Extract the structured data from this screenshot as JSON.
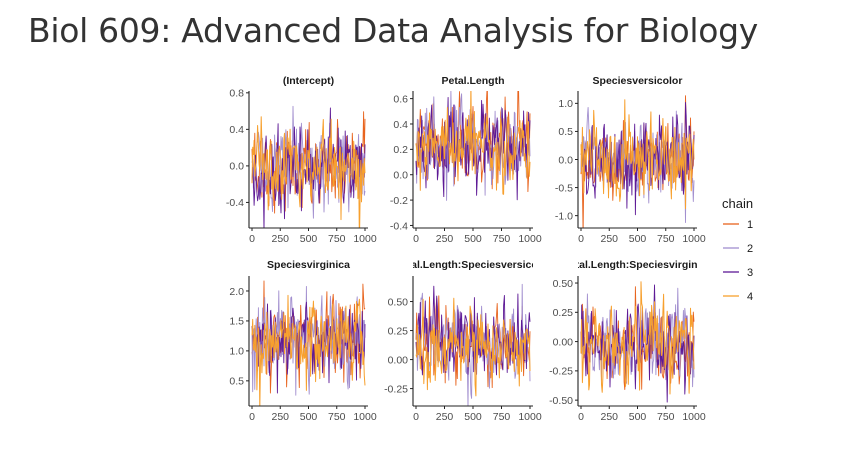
{
  "page": {
    "title": "Biol 609: Advanced Data Analysis for Biology"
  },
  "colors": {
    "1": "#e8641e",
    "2": "#a28fcf",
    "3": "#5e1a96",
    "4": "#f7a02e",
    "axis": "#222222",
    "tick_label": "#4d4d4d"
  },
  "legend": {
    "title": "chain",
    "placement": "right"
  },
  "chart_data": [
    {
      "type": "line",
      "title": "(Intercept)",
      "x_ticks": [
        0,
        250,
        500,
        750,
        1000
      ],
      "xlim": [
        0,
        1000
      ],
      "y_ticks": [
        -0.4,
        0.0,
        0.4,
        0.8
      ],
      "y_tick_labels": [
        "-0.4",
        "0.0",
        "0.4",
        "0.8"
      ],
      "ylim": [
        -0.68,
        0.82
      ],
      "trace_center": -0.02,
      "trace_sd": 0.22,
      "series": [
        {
          "name": "1"
        },
        {
          "name": "2"
        },
        {
          "name": "3"
        },
        {
          "name": "4"
        }
      ]
    },
    {
      "type": "line",
      "title": "Petal.Length",
      "x_ticks": [
        0,
        250,
        500,
        750,
        1000
      ],
      "xlim": [
        0,
        1000
      ],
      "y_ticks": [
        -0.4,
        -0.2,
        0.0,
        0.2,
        0.4,
        0.6
      ],
      "y_tick_labels": [
        "-0.4",
        "-0.2",
        "0.0",
        "0.2",
        "0.4",
        "0.6"
      ],
      "ylim": [
        -0.42,
        0.66
      ],
      "trace_center": 0.22,
      "trace_sd": 0.16,
      "series": [
        {
          "name": "1"
        },
        {
          "name": "2"
        },
        {
          "name": "3"
        },
        {
          "name": "4"
        }
      ]
    },
    {
      "type": "line",
      "title": "Speciesversicolor",
      "x_ticks": [
        0,
        250,
        500,
        750,
        1000
      ],
      "xlim": [
        0,
        1000
      ],
      "y_ticks": [
        -1.0,
        -0.5,
        0.0,
        0.5,
        1.0
      ],
      "y_tick_labels": [
        "-1.0",
        "-0.5",
        "0.0",
        "0.5",
        "1.0"
      ],
      "ylim": [
        -1.22,
        1.22
      ],
      "trace_center": 0.0,
      "trace_sd": 0.36,
      "series": [
        {
          "name": "1"
        },
        {
          "name": "2"
        },
        {
          "name": "3"
        },
        {
          "name": "4"
        }
      ]
    },
    {
      "type": "line",
      "title": "Speciesvirginica",
      "x_ticks": [
        0,
        250,
        500,
        750,
        1000
      ],
      "xlim": [
        0,
        1000
      ],
      "y_ticks": [
        0.5,
        1.0,
        1.5,
        2.0
      ],
      "y_tick_labels": [
        "0.5",
        "1.0",
        "1.5",
        "2.0"
      ],
      "ylim": [
        0.08,
        2.25
      ],
      "trace_center": 1.17,
      "trace_sd": 0.34,
      "series": [
        {
          "name": "1"
        },
        {
          "name": "2"
        },
        {
          "name": "3"
        },
        {
          "name": "4"
        }
      ]
    },
    {
      "type": "line",
      "title": "Petal.Length:Speciesversicolor",
      "x_ticks": [
        0,
        250,
        500,
        750,
        1000
      ],
      "xlim": [
        0,
        1000
      ],
      "y_ticks": [
        -0.25,
        0.0,
        0.25,
        0.5
      ],
      "y_tick_labels": [
        "-0.25",
        "0.00",
        "0.25",
        "0.50"
      ],
      "ylim": [
        -0.4,
        0.72
      ],
      "trace_center": 0.12,
      "trace_sd": 0.16,
      "series": [
        {
          "name": "1"
        },
        {
          "name": "2"
        },
        {
          "name": "3"
        },
        {
          "name": "4"
        }
      ]
    },
    {
      "type": "line",
      "title": "Petal.Length:Speciesvirginica",
      "x_ticks": [
        0,
        250,
        500,
        750,
        1000
      ],
      "xlim": [
        0,
        1000
      ],
      "y_ticks": [
        -0.5,
        -0.25,
        0.0,
        0.25,
        0.5
      ],
      "y_tick_labels": [
        "-0.50",
        "-0.25",
        "0.00",
        "0.25",
        "0.50"
      ],
      "ylim": [
        -0.55,
        0.56
      ],
      "trace_center": -0.02,
      "trace_sd": 0.17,
      "series": [
        {
          "name": "1"
        },
        {
          "name": "2"
        },
        {
          "name": "3"
        },
        {
          "name": "4"
        }
      ]
    }
  ]
}
